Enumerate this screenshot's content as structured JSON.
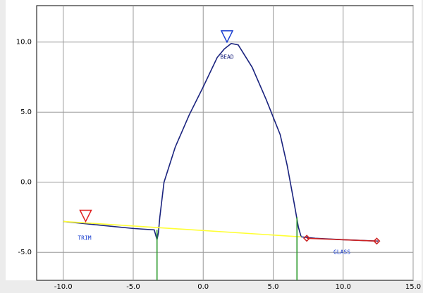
{
  "chart_data": {
    "type": "line",
    "xlim": [
      -11.9,
      15
    ],
    "ylim": [
      -7,
      12.6
    ],
    "xticks": [
      {
        "value": -10,
        "label": "-10.0"
      },
      {
        "value": -5,
        "label": "-5.0"
      },
      {
        "value": 0,
        "label": "0.0"
      },
      {
        "value": 5,
        "label": "5.0"
      },
      {
        "value": 10,
        "label": "10.0"
      },
      {
        "value": 15,
        "label": "15.0"
      }
    ],
    "yticks": [
      {
        "value": -5,
        "label": "-5.0"
      },
      {
        "value": 0,
        "label": "0.0"
      },
      {
        "value": 5,
        "label": "5.0"
      },
      {
        "value": 10,
        "label": "10.0"
      }
    ],
    "grid": true,
    "series": [
      {
        "color": "#1a237e",
        "x": [
          -10,
          -7,
          -5,
          -3.5,
          -3.3,
          -3.2,
          -3.1,
          -2.8,
          -2,
          -1,
          0,
          1,
          1.5,
          2,
          2.5,
          3.5,
          4.5,
          5.5,
          6,
          6.5,
          6.8,
          7,
          8,
          10,
          12.5
        ],
        "values": [
          -2.8,
          -3.1,
          -3.3,
          -3.4,
          -4.1,
          -3.6,
          -2.5,
          0,
          2.5,
          4.8,
          6.8,
          8.9,
          9.5,
          9.9,
          9.8,
          8.2,
          5.9,
          3.4,
          1.2,
          -1.5,
          -3.2,
          -3.9,
          -4.0,
          -4.1,
          -4.2
        ]
      },
      {
        "color": "#ffff33",
        "x": [
          -10,
          7
        ],
        "values": [
          -2.8,
          -3.9
        ]
      },
      {
        "color": "#2e9b2e",
        "x": [
          -3.3,
          -3.3
        ],
        "values": [
          -7,
          -3.4
        ]
      },
      {
        "color": "#2e9b2e",
        "x": [
          6.7,
          6.7
        ],
        "values": [
          -7,
          -2.5
        ]
      },
      {
        "color": "#cc2222",
        "marker": "diamond",
        "x": [
          7.4,
          12.4
        ],
        "values": [
          -4.0,
          -4.2
        ]
      },
      {
        "color": "#e02020",
        "marker": "triangle",
        "line": false,
        "x": [
          -8.4
        ],
        "values": [
          -2.4
        ]
      },
      {
        "color": "#1a3fd0",
        "marker": "triangle",
        "line": false,
        "x": [
          1.7
        ],
        "values": [
          10.4
        ]
      }
    ],
    "annotations": [
      {
        "text": "BEAD",
        "color": "#1a237e"
      },
      {
        "text": "TRIM",
        "color": "#1a3fd0"
      },
      {
        "text": "GLASS",
        "color": "#1a3fd0"
      }
    ]
  }
}
